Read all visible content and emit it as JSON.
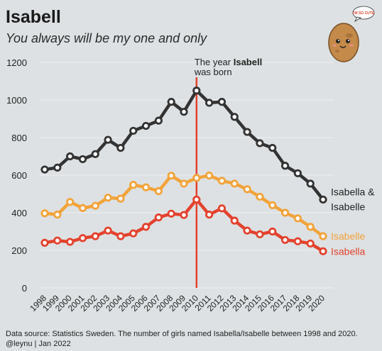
{
  "chart_data": {
    "type": "line",
    "title": "Isabell",
    "subtitle": "You always will be my one and only",
    "x": [
      1998,
      1999,
      2000,
      2001,
      2002,
      2003,
      2004,
      2005,
      2006,
      2007,
      2008,
      2009,
      2010,
      2011,
      2012,
      2013,
      2014,
      2015,
      2016,
      2017,
      2018,
      2019,
      2020
    ],
    "ylim": [
      0,
      1200
    ],
    "yticks": [
      0,
      200,
      400,
      600,
      800,
      1000,
      1200
    ],
    "grid": true,
    "highlight_year": 2010,
    "annotation": {
      "line1_prefix": "The year ",
      "line1_bold": "Isabell",
      "line2": "was born"
    },
    "series": [
      {
        "name": "Isabella & Isabelle",
        "label_lines": [
          "Isabella &",
          "Isabelle"
        ],
        "color": "#333333",
        "values": [
          630,
          640,
          700,
          685,
          712,
          788,
          745,
          836,
          862,
          890,
          990,
          937,
          1050,
          985,
          990,
          910,
          830,
          770,
          745,
          650,
          610,
          555,
          470
        ]
      },
      {
        "name": "Isabelle",
        "label_lines": [
          "Isabelle"
        ],
        "color": "#f2a33a",
        "values": [
          397,
          390,
          457,
          425,
          437,
          480,
          475,
          548,
          535,
          515,
          597,
          555,
          585,
          598,
          570,
          555,
          525,
          485,
          440,
          400,
          370,
          325,
          275
        ]
      },
      {
        "name": "Isabella",
        "label_lines": [
          "Isabella"
        ],
        "color": "#e3422e",
        "values": [
          240,
          252,
          245,
          265,
          275,
          305,
          275,
          290,
          325,
          375,
          395,
          388,
          470,
          390,
          423,
          358,
          305,
          285,
          300,
          255,
          248,
          236,
          195
        ]
      }
    ]
  },
  "caption": {
    "line1": "Data source: Statistics Sweden. The number of girls named Isabella/Isabelle between 1998 and 2020.",
    "line2": "@leynu | Jan 2022"
  },
  "mascot": {
    "icon": "potato-mascot-icon",
    "bubble_text": "I'M SO CUTE"
  },
  "colors": {
    "background": "#dde1e3",
    "highlight": "#e3422e",
    "grid": "#eef0f1"
  }
}
